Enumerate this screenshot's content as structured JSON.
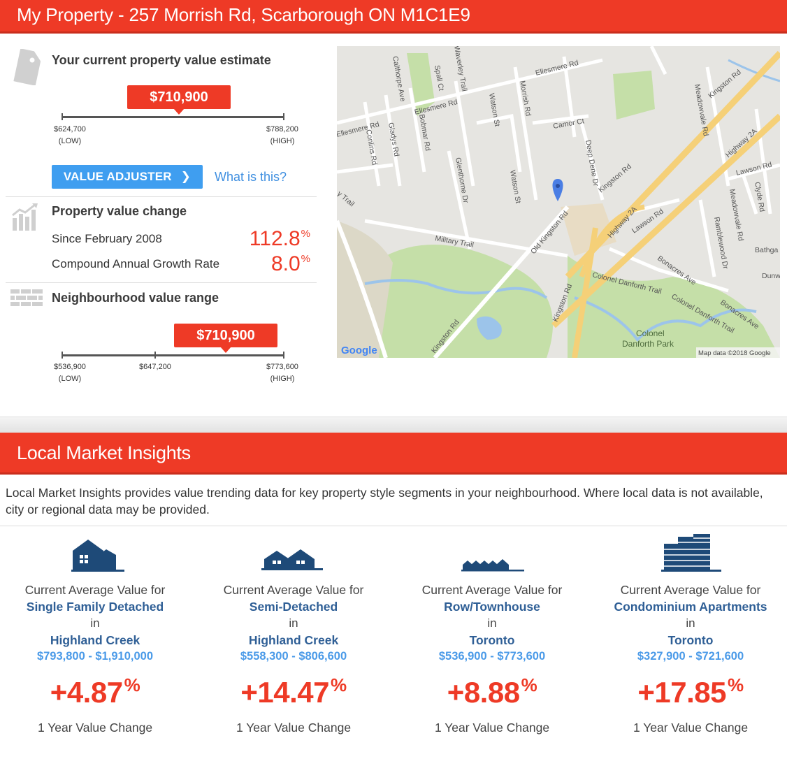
{
  "header": {
    "title": "My Property - 257 Morrish Rd, Scarborough ON M1C1E9"
  },
  "estimate": {
    "title": "Your current property value estimate",
    "value": "$710,900",
    "low_value": "$624,700",
    "low_label": "(LOW)",
    "high_value": "$788,200",
    "high_label": "(HIGH)",
    "adjuster_label": "VALUE ADJUSTER",
    "what_is_this": "What is this?"
  },
  "change": {
    "title": "Property value change",
    "since_label": "Since February 2008",
    "since_value": "112.8",
    "cagr_label": "Compound Annual Growth Rate",
    "cagr_value": "8.0",
    "pct": "%"
  },
  "range": {
    "title": "Neighbourhood value range",
    "value": "$710,900",
    "low_value": "$536,900",
    "low_label": "(LOW)",
    "mid_value": "$647,200",
    "high_value": "$773,600",
    "high_label": "(HIGH)"
  },
  "map": {
    "credit": "Map data ©2018 Google",
    "logo": "Google",
    "labels": {
      "ellesmere1": "Ellesmere Rd",
      "ellesmere2": "Ellesmere Rd",
      "ellesmere3": "Ellesmere Rd",
      "calthorpe": "Calthorpe Ave",
      "spall": "Spall Ct",
      "waverley": "Waverley Trail",
      "watson1": "Watson St",
      "watson2": "Watson St",
      "morrish": "Morrish Rd",
      "camor": "Camor Ct",
      "gladys": "Gladys Rd",
      "bobmar": "Bobmar Rd",
      "conlins": "Conlins Rd",
      "glenthorne": "Glenthorne Dr",
      "deepdene": "Deep Dene Dr",
      "kingston1": "Kingston Rd",
      "kingston2": "Kingston Rd",
      "kingston3": "Kingston Rd",
      "kingston4": "Kingston Rd",
      "highway2a1": "Highway 2A",
      "highway2a2": "Highway 2A",
      "highway2a3": "Highway 2A",
      "meadowvale1": "Meadowvale Rd",
      "meadowvale2": "Meadowvale Rd",
      "lawson1": "Lawson Rd",
      "lawson2": "Lawson Rd",
      "clyde": "Clyde Rd",
      "military": "Military Trail",
      "oldkingston": "Old Kingston Rd",
      "ramblewood": "Ramblewood Dr",
      "bathgate": "Bathga",
      "dunwatson": "Dunw",
      "bonacres1": "Bonacres Ave",
      "bonacres2": "Bonacres Ave",
      "colonel1": "Colonel Danforth Trail",
      "colonel2": "Colonel Danforth Trail",
      "park": "Colonel\nDanforth Park",
      "trail_left": "y Trail"
    }
  },
  "lmi": {
    "title": "Local Market Insights",
    "intro": "Local Market Insights provides value trending data for key property style segments in your neighbourhood. Where local data is not available, city or regional data may be provided.",
    "columns": [
      {
        "icon": "single-family-house-icon",
        "line1": "Current Average Value for",
        "type": "Single Family Detached",
        "in": "in",
        "area": "Highland Creek",
        "range": "$793,800 - $1,910,000",
        "change": "+4.87",
        "pct": "%",
        "caption": "1 Year Value Change"
      },
      {
        "icon": "semi-detached-house-icon",
        "line1": "Current Average Value for",
        "type": "Semi-Detached",
        "in": "in",
        "area": "Highland Creek",
        "range": "$558,300 - $806,600",
        "change": "+14.47",
        "pct": "%",
        "caption": "1 Year Value Change"
      },
      {
        "icon": "townhouse-icon",
        "line1": "Current Average Value for",
        "type": "Row/Townhouse",
        "in": "in",
        "area": "Toronto",
        "range": "$536,900 - $773,600",
        "change": "+8.88",
        "pct": "%",
        "caption": "1 Year Value Change"
      },
      {
        "icon": "condo-building-icon",
        "line1": "Current Average Value for",
        "type": "Condominium Apartments",
        "in": "in",
        "area": "Toronto",
        "range": "$327,900 - $721,600",
        "change": "+17.85",
        "pct": "%",
        "caption": "1 Year Value Change"
      }
    ]
  }
}
